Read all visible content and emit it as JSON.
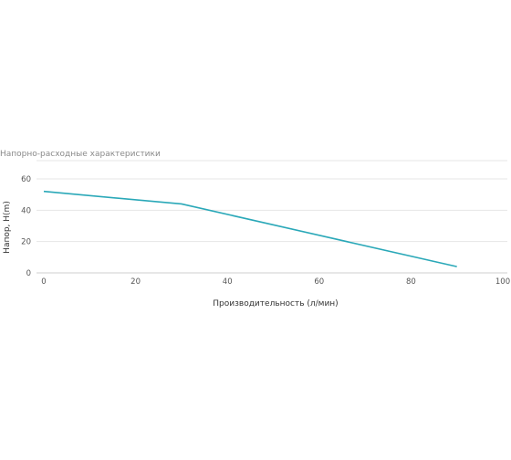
{
  "chart_data": {
    "type": "line",
    "title": "Напорно-расходные характеристики",
    "xlabel": "Производительность (л/мин)",
    "ylabel": "Напор, H(m)",
    "xlim": [
      0,
      100
    ],
    "ylim": [
      0,
      70
    ],
    "x_ticks": [
      "0",
      "20",
      "40",
      "60",
      "80",
      "100"
    ],
    "y_ticks": [
      "0",
      "20",
      "40",
      "60"
    ],
    "grid": true,
    "legend": "none",
    "series": [
      {
        "color": "#2aa8b8",
        "points": [
          {
            "x": 0,
            "y": 52
          },
          {
            "x": 30,
            "y": 44
          },
          {
            "x": 90,
            "y": 4
          }
        ]
      }
    ]
  }
}
